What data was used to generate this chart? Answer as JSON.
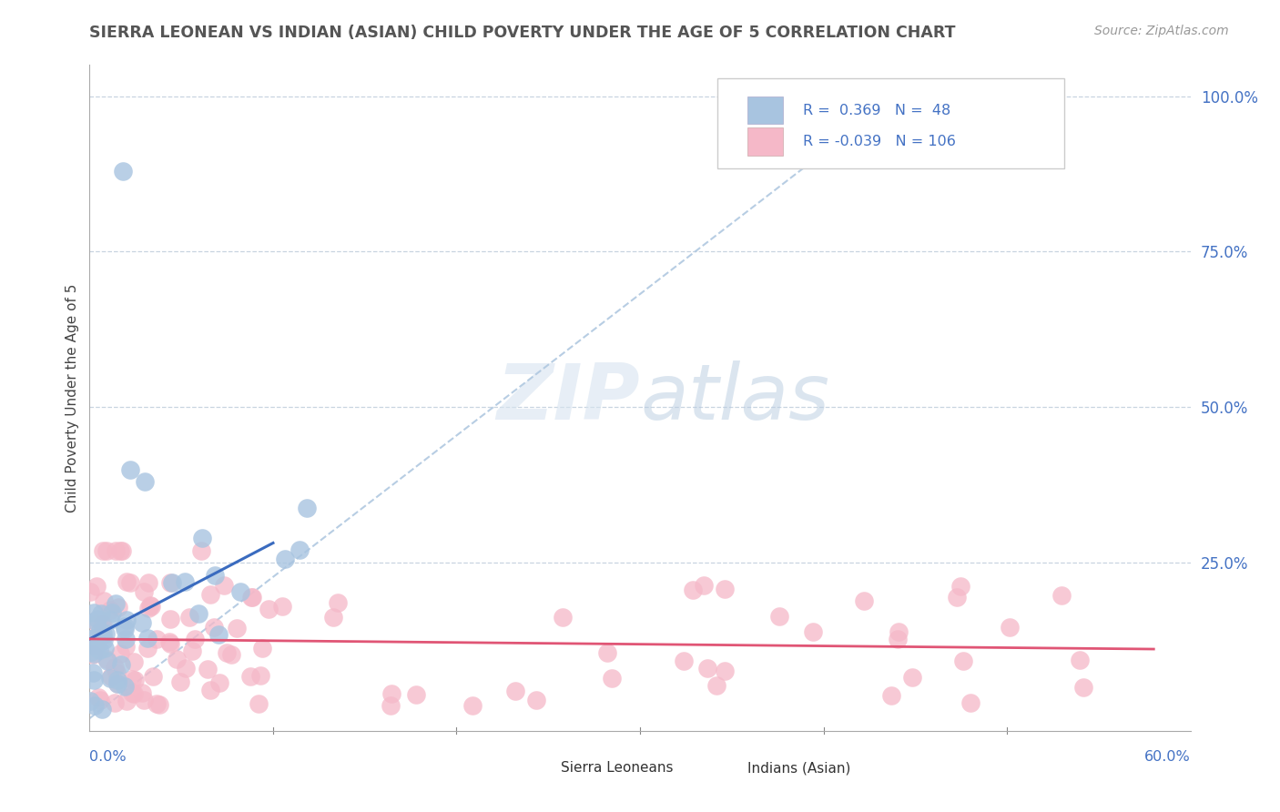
{
  "title": "SIERRA LEONEAN VS INDIAN (ASIAN) CHILD POVERTY UNDER THE AGE OF 5 CORRELATION CHART",
  "source": "Source: ZipAtlas.com",
  "ylabel": "Child Poverty Under the Age of 5",
  "legend_entries": [
    "Sierra Leoneans",
    "Indians (Asian)"
  ],
  "r_blue": 0.369,
  "n_blue": 48,
  "r_pink": -0.039,
  "n_pink": 106,
  "blue_color": "#a8c4e0",
  "pink_color": "#f5b8c8",
  "blue_line_color": "#3a6bbf",
  "pink_line_color": "#e05575",
  "dashed_line_color": "#b0c8e0",
  "grid_color": "#c8d4e0",
  "background_color": "#ffffff",
  "xlim": [
    0.0,
    0.6
  ],
  "ylim": [
    -0.02,
    1.05
  ],
  "yticks": [
    0.0,
    0.25,
    0.5,
    0.75,
    1.0
  ],
  "ytick_labels": [
    "",
    "25.0%",
    "50.0%",
    "75.0%",
    "100.0%"
  ]
}
